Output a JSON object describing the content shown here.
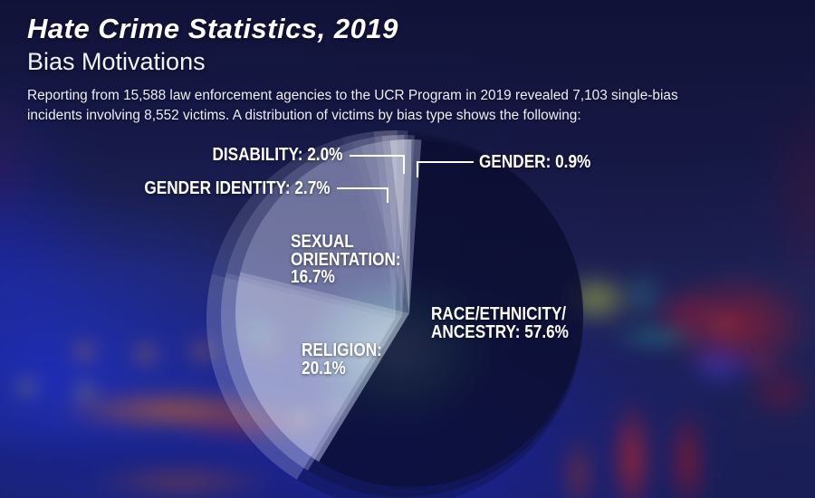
{
  "header": {
    "title": "Hate Crime Statistics, 2019",
    "subtitle": "Bias Motivations",
    "description": "Reporting from 15,588 law enforcement agencies to the UCR Program in 2019 revealed 7,103 single-bias incidents involving 8,552 victims. A distribution of victims by bias type shows the following:"
  },
  "chart_data": {
    "type": "pie",
    "title": "Bias Motivations",
    "unit": "percent of victims",
    "start_angle_deg": 4,
    "direction": "clockwise",
    "legend_position": "callout-labels-on-chart",
    "slices": [
      {
        "label": "Race/Ethnicity/Ancestry",
        "value": 57.6,
        "color": "#0c0e30",
        "fill_rgba": "rgba(12,14,48,0.62)"
      },
      {
        "label": "Religion",
        "value": 20.1,
        "color": "#d2d6ec",
        "fill_rgba": "rgba(210,214,236,0.45)"
      },
      {
        "label": "Sexual Orientation",
        "value": 16.7,
        "color": "#a5acd0",
        "fill_rgba": "rgba(165,172,208,0.38)"
      },
      {
        "label": "Gender Identity",
        "value": 2.7,
        "color": "#b4bada",
        "fill_rgba": "rgba(180,186,218,0.42)"
      },
      {
        "label": "Disability",
        "value": 2.0,
        "color": "#e4e6f2",
        "fill_rgba": "rgba(228,230,242,0.55)"
      },
      {
        "label": "Gender",
        "value": 0.9,
        "color": "#969dc3",
        "fill_rgba": "rgba(150,157,195,0.45)"
      }
    ],
    "labels": {
      "race": {
        "lines": [
          "RACE/ETHNICITY/",
          "ANCESTRY: 57.6%"
        ]
      },
      "religion": {
        "lines": [
          "RELIGION:",
          "20.1%"
        ]
      },
      "sexual_orientation": {
        "lines": [
          "SEXUAL",
          "ORIENTATION:",
          "16.7%"
        ]
      },
      "gender_identity": {
        "text": "GENDER IDENTITY: 2.7%"
      },
      "disability": {
        "text": "DISABILITY: 2.0%"
      },
      "gender": {
        "text": "GENDER: 0.9%"
      }
    }
  },
  "colors": {
    "label_text": "#ffffff",
    "callout_line": "#ffffff",
    "background_base": "#1a1d52"
  }
}
